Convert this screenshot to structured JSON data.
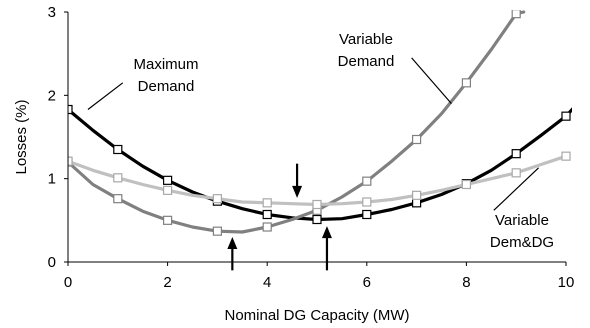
{
  "chart_data": {
    "type": "line",
    "title": "",
    "xlabel": "Nominal DG Capacity (MW)",
    "ylabel": "Losses (%)",
    "xlim": [
      0,
      10
    ],
    "ylim": [
      0,
      3
    ],
    "xticks": [
      "0",
      "2",
      "4",
      "6",
      "8",
      "10"
    ],
    "yticks": [
      "0",
      "1",
      "2",
      "3"
    ],
    "grid": false,
    "legend": "none",
    "series": [
      {
        "name": "Maximum Demand",
        "color": "#000000",
        "marker": "square-white",
        "x": [
          0,
          1,
          2,
          3,
          4,
          5,
          6,
          7,
          8,
          9,
          10
        ],
        "y": [
          1.83,
          1.35,
          0.98,
          0.73,
          0.57,
          0.51,
          0.57,
          0.71,
          0.94,
          1.3,
          1.75
        ],
        "curve": [
          [
            0,
            1.83
          ],
          [
            0.5,
            1.58
          ],
          [
            1,
            1.35
          ],
          [
            1.5,
            1.15
          ],
          [
            2,
            0.98
          ],
          [
            2.5,
            0.84
          ],
          [
            3,
            0.73
          ],
          [
            3.5,
            0.64
          ],
          [
            4,
            0.57
          ],
          [
            4.5,
            0.53
          ],
          [
            5,
            0.51
          ],
          [
            5.5,
            0.52
          ],
          [
            6,
            0.57
          ],
          [
            6.5,
            0.63
          ],
          [
            7,
            0.71
          ],
          [
            7.5,
            0.81
          ],
          [
            8,
            0.94
          ],
          [
            8.5,
            1.1
          ],
          [
            9,
            1.3
          ],
          [
            9.5,
            1.52
          ],
          [
            10,
            1.75
          ],
          [
            10.2,
            1.88
          ]
        ]
      },
      {
        "name": "Variable Demand",
        "color": "#808080",
        "marker": "square-white",
        "x": [
          0,
          1,
          2,
          3,
          4,
          5,
          6,
          7,
          8,
          9
        ],
        "y": [
          1.2,
          0.76,
          0.5,
          0.37,
          0.42,
          0.62,
          0.97,
          1.47,
          2.15,
          2.98
        ],
        "curve": [
          [
            0,
            1.2
          ],
          [
            0.5,
            0.93
          ],
          [
            1,
            0.76
          ],
          [
            1.5,
            0.61
          ],
          [
            2,
            0.5
          ],
          [
            2.5,
            0.42
          ],
          [
            3,
            0.37
          ],
          [
            3.5,
            0.36
          ],
          [
            4,
            0.42
          ],
          [
            4.5,
            0.51
          ],
          [
            5,
            0.62
          ],
          [
            5.5,
            0.78
          ],
          [
            6,
            0.97
          ],
          [
            6.5,
            1.21
          ],
          [
            7,
            1.47
          ],
          [
            7.5,
            1.78
          ],
          [
            8,
            2.15
          ],
          [
            8.5,
            2.55
          ],
          [
            9,
            2.98
          ],
          [
            9.15,
            3.0
          ]
        ]
      },
      {
        "name": "Variable Dem&DG",
        "color": "#c0c0c0",
        "marker": "square-white",
        "x": [
          0,
          1,
          2,
          3,
          4,
          5,
          6,
          7,
          8,
          9,
          10
        ],
        "y": [
          1.21,
          1.01,
          0.86,
          0.76,
          0.71,
          0.69,
          0.72,
          0.8,
          0.93,
          1.07,
          1.27
        ],
        "curve": [
          [
            0,
            1.21
          ],
          [
            0.5,
            1.1
          ],
          [
            1,
            1.01
          ],
          [
            1.5,
            0.93
          ],
          [
            2,
            0.86
          ],
          [
            2.5,
            0.8
          ],
          [
            3,
            0.76
          ],
          [
            3.5,
            0.72
          ],
          [
            4,
            0.71
          ],
          [
            4.5,
            0.7
          ],
          [
            5,
            0.69
          ],
          [
            5.5,
            0.7
          ],
          [
            6,
            0.72
          ],
          [
            6.5,
            0.75
          ],
          [
            7,
            0.8
          ],
          [
            7.5,
            0.86
          ],
          [
            8,
            0.93
          ],
          [
            8.5,
            1.0
          ],
          [
            9,
            1.07
          ],
          [
            9.5,
            1.17
          ],
          [
            10,
            1.27
          ]
        ]
      }
    ],
    "annotations": [
      {
        "lines": [
          "Maximum",
          "Demand"
        ],
        "leader_from": [
          0.4,
          1.83
        ],
        "leader_to": [
          1.1,
          2.15
        ]
      },
      {
        "lines": [
          "Variable",
          "Demand"
        ],
        "leader_from": [
          7.7,
          1.9
        ],
        "leader_to": [
          6.9,
          2.45
        ]
      },
      {
        "lines": [
          "Variable",
          "Dem&DG"
        ],
        "leader_from": [
          9.45,
          1.13
        ],
        "leader_to": [
          8.55,
          0.62
        ]
      }
    ],
    "minimum_markers": [
      {
        "x": 4.6,
        "y_tail": 1.18,
        "y_head": 0.77,
        "direction": "down"
      },
      {
        "x": 5.2,
        "y_tail": -0.1,
        "y_head": 0.43,
        "direction": "up"
      },
      {
        "x": 3.3,
        "y_tail": -0.1,
        "y_head": 0.3,
        "direction": "up"
      }
    ]
  }
}
